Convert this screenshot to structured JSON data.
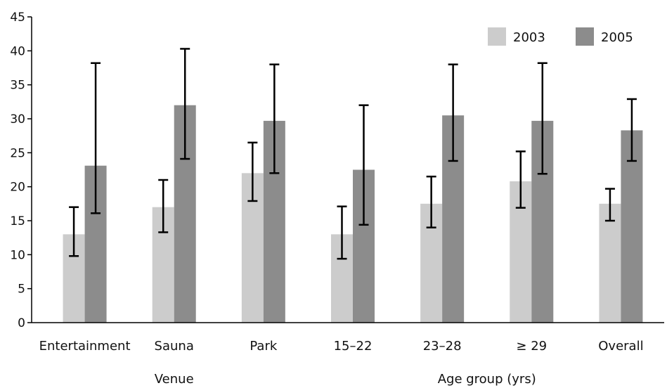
{
  "chart_data": {
    "type": "bar",
    "categories": [
      "Entertainment",
      "Sauna",
      "Park",
      "15–22",
      "23–28",
      "≥ 29",
      "Overall"
    ],
    "groups": [
      {
        "label": "Venue",
        "categories": [
          "Entertainment",
          "Sauna",
          "Park"
        ]
      },
      {
        "label": "Age group (yrs)",
        "categories": [
          "15–22",
          "23–28",
          "≥ 29",
          "Overall"
        ]
      }
    ],
    "series": [
      {
        "name": "2003",
        "color": "#cccccc",
        "values": [
          13,
          17,
          22,
          13,
          17.5,
          20.8,
          17.5
        ],
        "error_low": [
          9.8,
          13.3,
          17.9,
          9.4,
          14.0,
          16.9,
          15.0
        ],
        "error_high": [
          17.0,
          21.0,
          26.5,
          17.1,
          21.5,
          25.2,
          19.7
        ]
      },
      {
        "name": "2005",
        "color": "#8c8c8c",
        "values": [
          23.1,
          32,
          29.7,
          22.5,
          30.5,
          29.7,
          28.3
        ],
        "error_low": [
          16.1,
          24.1,
          22.0,
          14.4,
          23.8,
          21.9,
          23.8
        ],
        "error_high": [
          38.2,
          40.3,
          38.0,
          32.0,
          38.0,
          38.2,
          32.9
        ]
      }
    ],
    "ylim": [
      0,
      45
    ],
    "yticks": [
      0,
      5,
      10,
      15,
      20,
      25,
      30,
      35,
      40,
      45
    ],
    "grid": false,
    "legend_position": "top-right"
  }
}
